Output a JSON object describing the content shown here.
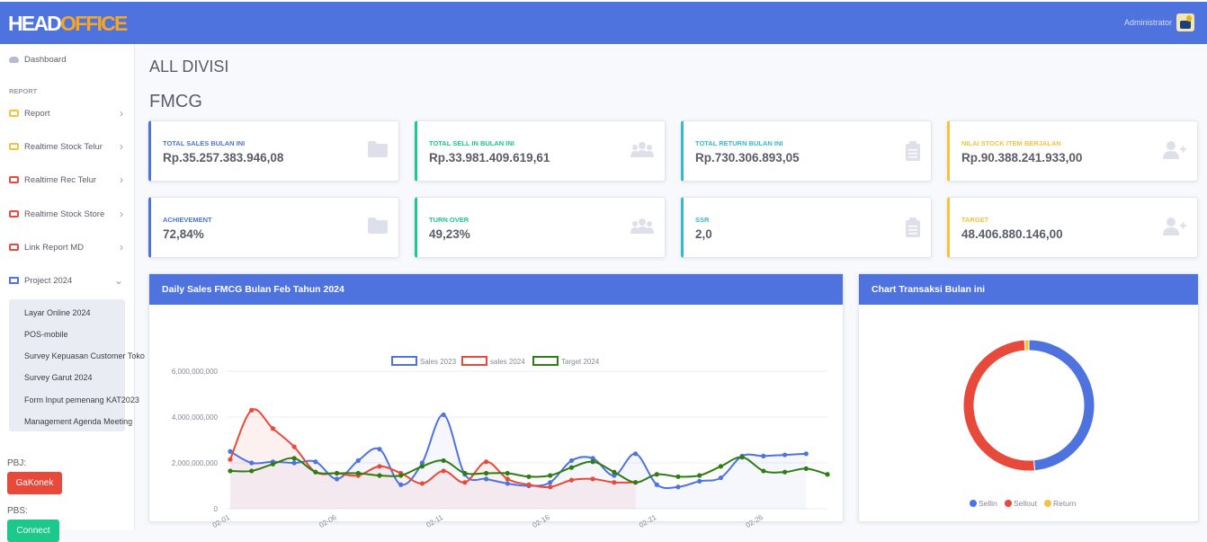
{
  "brand": {
    "logo_white": "HEAD",
    "logo_orange": "OFFICE"
  },
  "user": {
    "name": "Administrator"
  },
  "sidebar": {
    "dashboard": "Dashboard",
    "section_report": "REPORT",
    "items": [
      {
        "label": "Report",
        "icon": "lock-yellow-icon"
      },
      {
        "label": "Realtime Stock Telur",
        "icon": "lock-yellow-icon"
      },
      {
        "label": "Realtime Rec Telur",
        "icon": "lock-red-icon"
      },
      {
        "label": "Realtime Stock Store",
        "icon": "lock-red-icon"
      },
      {
        "label": "Link Report MD",
        "icon": "lock-red-icon"
      },
      {
        "label": "Project 2024",
        "icon": "monitor-icon"
      }
    ],
    "sub_items": [
      "Layar Online 2024",
      "POS-mobile",
      "Survey Kepuasan Customer Toko",
      "Survey Garut 2024",
      "Form Input pemenang KAT2023",
      "Management Agenda Meeting"
    ],
    "pbj_label": "PBJ:",
    "pbj_button": "GaKonek",
    "pbs_label": "PBS:",
    "pbs_button": "Connect"
  },
  "page": {
    "title": "ALL DIVISI",
    "subtitle": "FMCG"
  },
  "cards": [
    {
      "label": "TOTAL SALES BULAN INI",
      "value": "Rp.35.257.383.946,08",
      "icon": "folder-icon"
    },
    {
      "label": "TOTAL SELL IN BULAN INI",
      "value": "Rp.33.981.409.619,61",
      "icon": "users-icon"
    },
    {
      "label": "TOTAL RETURN BULAN INI",
      "value": "Rp.730.306.893,05",
      "icon": "clipboard-icon"
    },
    {
      "label": "NILAI STOCK ITEM BERJALAN",
      "value": "Rp.90.388.241.933,00",
      "icon": "user-plus-icon"
    },
    {
      "label": "ACHIEVEMENT",
      "value": "72,84%",
      "icon": "folder-icon"
    },
    {
      "label": "TURN OVER",
      "value": "49,23%",
      "icon": "users-icon"
    },
    {
      "label": "SSR",
      "value": "2,0",
      "icon": "clipboard-icon"
    },
    {
      "label": "TARGET",
      "value": "48.406.880.146,00",
      "icon": "user-plus-icon"
    }
  ],
  "colors": {
    "primary": "#4e73df",
    "success": "#1cc88a",
    "info": "#36b9cc",
    "warning": "#f6c23e",
    "danger": "#e74a3b"
  },
  "line_panel": {
    "title": "Daily Sales FMCG Bulan Feb Tahun 2024"
  },
  "donut_panel": {
    "title": "Chart Transaksi Bulan ini"
  },
  "chart_data": [
    {
      "type": "line",
      "title": "Daily Sales FMCG Bulan Feb Tahun 2024",
      "x": [
        "02-01",
        "02-02",
        "02-03",
        "02-04",
        "02-05",
        "02-06",
        "02-07",
        "02-08",
        "02-09",
        "02-10",
        "02-11",
        "02-12",
        "02-13",
        "02-14",
        "02-15",
        "02-16",
        "02-17",
        "02-18",
        "02-19",
        "02-20",
        "02-21",
        "02-22",
        "02-23",
        "02-24",
        "02-25",
        "02-26",
        "02-27",
        "02-28",
        "02-29"
      ],
      "x_tick_labels": [
        "02-01",
        "02-06",
        "02-11",
        "02-16",
        "02-21",
        "02-26"
      ],
      "y_tick_labels": [
        "0",
        "2,000,000,000",
        "4,000,000,000",
        "6,000,000,000"
      ],
      "ylim": [
        0,
        6000000000
      ],
      "legend_position": "top",
      "series": [
        {
          "name": "Sales 2023",
          "color": "#4e73df",
          "values": [
            2500000000,
            2000000000,
            2050000000,
            2000000000,
            2050000000,
            1300000000,
            2100000000,
            2600000000,
            1050000000,
            2000000000,
            4100000000,
            1500000000,
            1300000000,
            1100000000,
            1000000000,
            1150000000,
            2100000000,
            2200000000,
            1450000000,
            2400000000,
            1050000000,
            950000000,
            1200000000,
            1350000000,
            2300000000,
            2300000000,
            2350000000,
            2400000000,
            null
          ]
        },
        {
          "name": "sales 2024",
          "color": "#e74a3b",
          "values": [
            2150000000,
            4300000000,
            3500000000,
            2700000000,
            1600000000,
            1550000000,
            1450000000,
            1850000000,
            1550000000,
            1100000000,
            1650000000,
            1150000000,
            2050000000,
            1300000000,
            1050000000,
            950000000,
            1250000000,
            1300000000,
            1150000000,
            1150000000,
            null,
            null,
            null,
            null,
            null,
            null,
            null,
            null,
            null
          ]
        },
        {
          "name": "Target 2024",
          "color": "#2e7d12",
          "values": [
            1650000000,
            1650000000,
            1950000000,
            2200000000,
            1600000000,
            1550000000,
            1550000000,
            1450000000,
            1450000000,
            1850000000,
            2100000000,
            1550000000,
            1550000000,
            1550000000,
            1400000000,
            1450000000,
            1800000000,
            2050000000,
            1600000000,
            1150000000,
            1500000000,
            1400000000,
            1450000000,
            1850000000,
            2250000000,
            1650000000,
            1600000000,
            1750000000,
            1500000000
          ]
        }
      ]
    },
    {
      "type": "pie",
      "title": "Chart Transaksi Bulan ini",
      "legend_position": "bottom",
      "categories": [
        "Sellin",
        "Sellout",
        "Return"
      ],
      "values": [
        33981409619.61,
        35257383946.08,
        730306893.05
      ],
      "colors": [
        "#4e73df",
        "#e74a3b",
        "#f6c23e"
      ]
    }
  ]
}
